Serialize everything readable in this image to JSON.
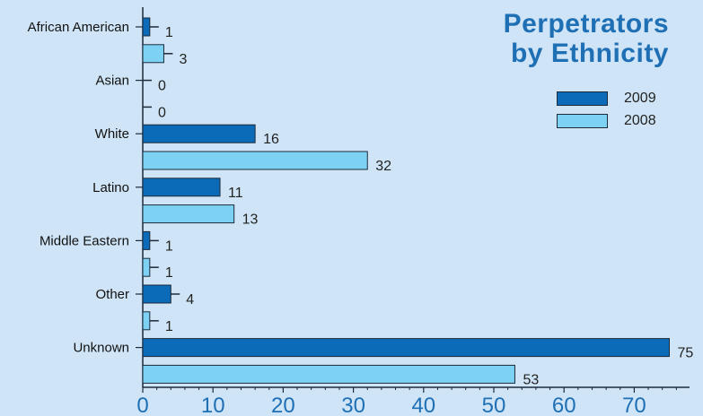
{
  "title": [
    "Perpetrators",
    "by Ethnicity"
  ],
  "colors": {
    "background": "#cfe5f7",
    "series_2009": "#0b6bb8",
    "series_2008": "#7dd2f4",
    "title": "#1f6fb5",
    "x_tick_labels": "#1f6fb5"
  },
  "chart_data": {
    "type": "bar",
    "orientation": "horizontal",
    "title": "Perpetrators by Ethnicity",
    "categories": [
      "African American",
      "Asian",
      "White",
      "Latino",
      "Middle Eastern",
      "Other",
      "Unknown"
    ],
    "series": [
      {
        "name": "2009",
        "values": [
          1,
          0,
          16,
          11,
          1,
          4,
          75
        ]
      },
      {
        "name": "2008",
        "values": [
          3,
          0,
          32,
          13,
          1,
          1,
          53
        ]
      }
    ],
    "xlabel": "",
    "ylabel": "",
    "xlim": [
      0,
      78
    ],
    "x_ticks": [
      0,
      10,
      20,
      30,
      40,
      50,
      60,
      70
    ],
    "grid": false,
    "legend_position": "top-right"
  }
}
